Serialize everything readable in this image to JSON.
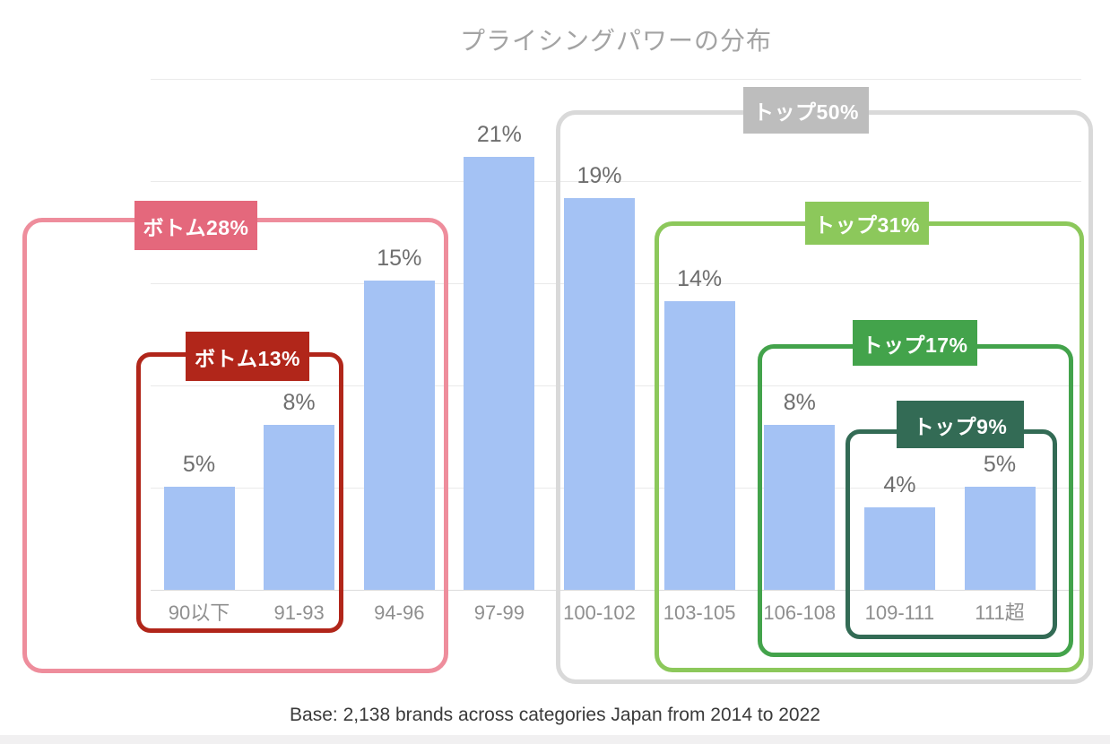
{
  "title": "プライシングパワーの分布",
  "footer": "Base: 2,138 brands across categories Japan from 2014 to 2022",
  "chart_data": {
    "type": "bar",
    "title": "プライシングパワーの分布",
    "categories": [
      "90以下",
      "91-93",
      "94-96",
      "97-99",
      "100-102",
      "103-105",
      "106-108",
      "109-111",
      "111超"
    ],
    "values": [
      5,
      8,
      15,
      21,
      19,
      14,
      8,
      4,
      5
    ],
    "value_labels": [
      "5%",
      "8%",
      "15%",
      "21%",
      "19%",
      "14%",
      "8%",
      "4%",
      "5%"
    ],
    "unit": "%",
    "xlabel": "",
    "ylabel": "",
    "ylim": [
      0,
      25
    ],
    "grid": true,
    "grid_interval": 5,
    "legend": false,
    "bar_color": "#a4c2f4",
    "note": "Base: 2,138 brands across categories Japan from 2014 to 2022",
    "groups": [
      {
        "label": "ボトム28%",
        "from": "90以下",
        "to": "94-96",
        "fill": "#e4687c",
        "border": "#ee8d9c"
      },
      {
        "label": "ボトム13%",
        "from": "90以下",
        "to": "91-93",
        "fill": "#b1261a",
        "border": "#b1261a"
      },
      {
        "label": "トップ50%",
        "from": "100-102",
        "to": "111超",
        "fill": "#bdbdbd",
        "border": "#d9d9d9"
      },
      {
        "label": "トップ31%",
        "from": "103-105",
        "to": "111超",
        "fill": "#8cc85b",
        "border": "#8cc85b"
      },
      {
        "label": "トップ17%",
        "from": "106-108",
        "to": "111超",
        "fill": "#43a34b",
        "border": "#43a34b"
      },
      {
        "label": "トップ9%",
        "from": "109-111",
        "to": "111超",
        "fill": "#336b55",
        "border": "#336b55"
      }
    ]
  }
}
